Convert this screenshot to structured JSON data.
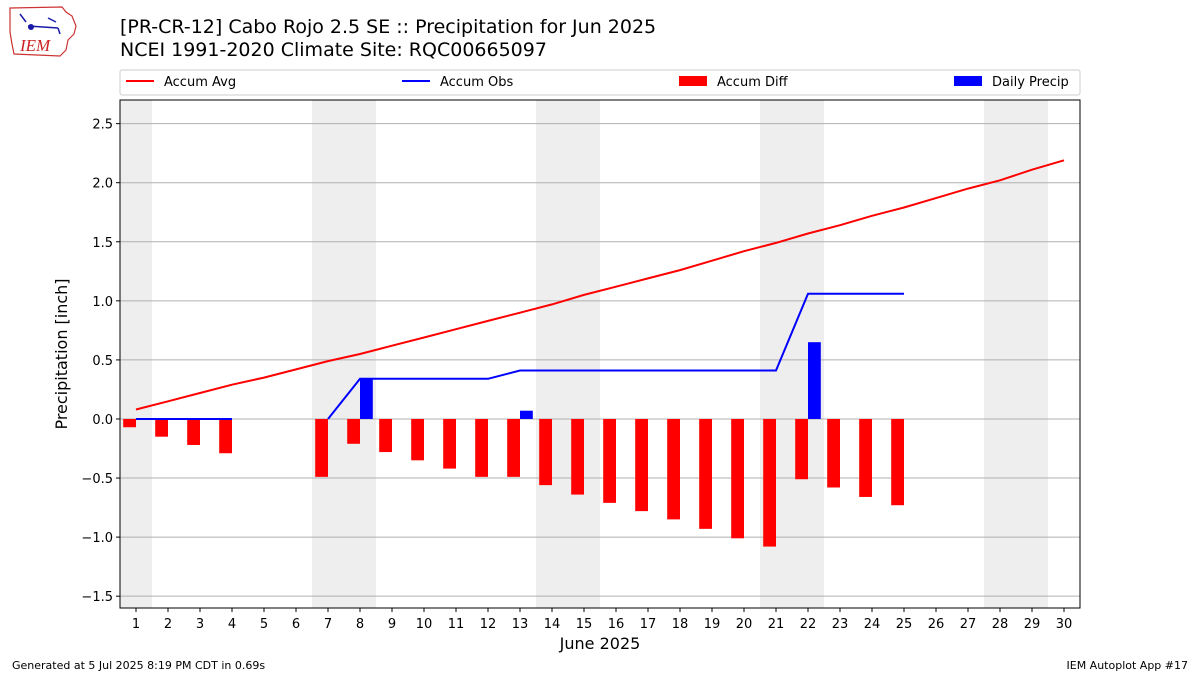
{
  "header": {
    "title_line1": "[PR-CR-12] Cabo Rojo 2.5 SE :: Precipitation for Jun 2025",
    "title_line2": "NCEI 1991-2020 Climate Site: RQC00665097",
    "logo_text": "IEM"
  },
  "footer": {
    "generated": "Generated at 5 Jul 2025 8:19 PM CDT in 0.69s",
    "app": "IEM Autoplot App #17"
  },
  "colors": {
    "avg": "#ff0000",
    "obs": "#0000ff",
    "diff": "#ff0000",
    "daily": "#0000ff",
    "weekend_shade": "#eeeeee",
    "grid": "#b0b0b0"
  },
  "chart_data": {
    "type": "bar",
    "xlabel": "June 2025",
    "ylabel": "Precipitation [inch]",
    "x": [
      1,
      2,
      3,
      4,
      5,
      6,
      7,
      8,
      9,
      10,
      11,
      12,
      13,
      14,
      15,
      16,
      17,
      18,
      19,
      20,
      21,
      22,
      23,
      24,
      25,
      26,
      27,
      28,
      29,
      30
    ],
    "xlim": [
      0.5,
      30.5
    ],
    "ylim": [
      -1.6,
      2.7
    ],
    "yticks": [
      -1.5,
      -1.0,
      -0.5,
      0.0,
      0.5,
      1.0,
      1.5,
      2.0,
      2.5
    ],
    "ytick_labels": [
      "−1.5",
      "−1.0",
      "−0.5",
      "0.0",
      "0.5",
      "1.0",
      "1.5",
      "2.0",
      "2.5"
    ],
    "grid": "horizontal",
    "legend_position": "top",
    "weekend_spans": [
      [
        0.5,
        1.5
      ],
      [
        6.5,
        8.5
      ],
      [
        13.5,
        15.5
      ],
      [
        20.5,
        22.5
      ],
      [
        27.5,
        29.5
      ]
    ],
    "series": [
      {
        "name": "Accum Avg",
        "kind": "line",
        "color": "#ff0000",
        "x": [
          1,
          2,
          3,
          4,
          5,
          6,
          7,
          8,
          9,
          10,
          11,
          12,
          13,
          14,
          15,
          16,
          17,
          18,
          19,
          20,
          21,
          22,
          23,
          24,
          25,
          26,
          27,
          28,
          29,
          30
        ],
        "values": [
          0.08,
          0.15,
          0.22,
          0.29,
          0.35,
          0.42,
          0.49,
          0.55,
          0.62,
          0.69,
          0.76,
          0.83,
          0.9,
          0.97,
          1.05,
          1.12,
          1.19,
          1.26,
          1.34,
          1.42,
          1.49,
          1.57,
          1.64,
          1.72,
          1.79,
          1.87,
          1.95,
          2.02,
          2.11,
          2.19
        ]
      },
      {
        "name": "Accum Obs",
        "kind": "line",
        "color": "#0000ff",
        "x": [
          1,
          2,
          3,
          4,
          7,
          8,
          9,
          10,
          11,
          12,
          13,
          14,
          15,
          16,
          17,
          18,
          19,
          20,
          21,
          22,
          23,
          24,
          25
        ],
        "values": [
          0.0,
          0.0,
          0.0,
          0.0,
          0.0,
          0.34,
          0.34,
          0.34,
          0.34,
          0.34,
          0.41,
          0.41,
          0.41,
          0.41,
          0.41,
          0.41,
          0.41,
          0.41,
          0.41,
          1.06,
          1.06,
          1.06,
          1.06
        ]
      },
      {
        "name": "Accum Diff",
        "kind": "bar",
        "color": "#ff0000",
        "x": [
          1,
          2,
          3,
          4,
          7,
          8,
          9,
          10,
          11,
          12,
          13,
          14,
          15,
          16,
          17,
          18,
          19,
          20,
          21,
          22,
          23,
          24,
          25
        ],
        "values": [
          -0.07,
          -0.15,
          -0.22,
          -0.29,
          -0.49,
          -0.21,
          -0.28,
          -0.35,
          -0.42,
          -0.49,
          -0.49,
          -0.56,
          -0.64,
          -0.71,
          -0.78,
          -0.85,
          -0.93,
          -1.01,
          -1.08,
          -0.51,
          -0.58,
          -0.66,
          -0.73
        ]
      },
      {
        "name": "Daily Precip",
        "kind": "bar",
        "color": "#0000ff",
        "x": [
          8,
          13,
          22
        ],
        "values": [
          0.34,
          0.07,
          0.65
        ]
      }
    ]
  }
}
